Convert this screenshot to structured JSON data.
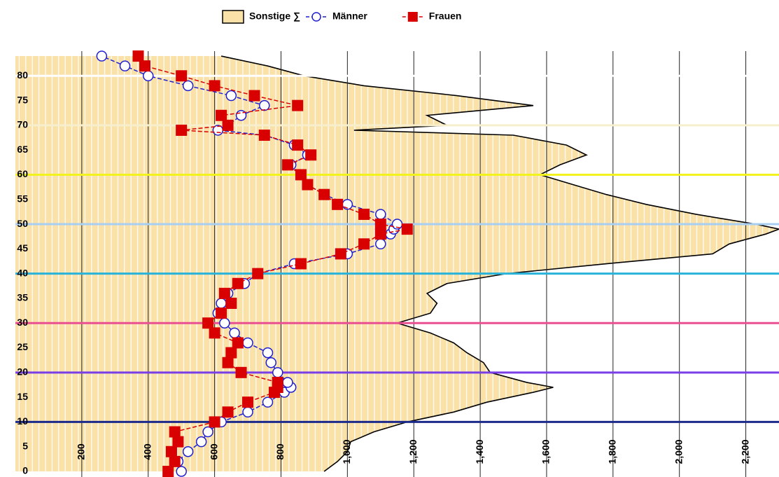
{
  "chart_data": {
    "type": "line",
    "orientation": "horizontal",
    "ages": [
      0,
      2,
      4,
      6,
      8,
      10,
      12,
      14,
      16,
      17,
      18,
      20,
      22,
      24,
      26,
      28,
      30,
      32,
      34,
      36,
      38,
      40,
      42,
      44,
      46,
      48,
      49,
      50,
      52,
      54,
      56,
      58,
      60,
      62,
      64,
      66,
      68,
      69,
      70,
      72,
      74,
      76,
      78,
      80,
      82,
      84
    ],
    "series": [
      {
        "name": "Sonstige ∑",
        "kind": "area",
        "color": "#f9e1a8",
        "values": [
          930,
          970,
          1000,
          1010,
          1080,
          1180,
          1320,
          1420,
          1560,
          1620,
          1540,
          1430,
          1410,
          1360,
          1320,
          1250,
          1150,
          1250,
          1270,
          1240,
          1300,
          1480,
          1780,
          2100,
          2150,
          2260,
          2300,
          2230,
          2050,
          1900,
          1780,
          1680,
          1580,
          1640,
          1720,
          1660,
          1500,
          1020,
          1300,
          1240,
          1560,
          1330,
          1050,
          870,
          760,
          620
        ]
      },
      {
        "name": "Männer",
        "kind": "circle",
        "color": "#1f1fd0",
        "values": [
          500,
          490,
          520,
          560,
          580,
          620,
          700,
          760,
          810,
          830,
          820,
          790,
          770,
          760,
          700,
          660,
          630,
          610,
          620,
          640,
          690,
          730,
          840,
          1000,
          1100,
          1130,
          1140,
          1150,
          1100,
          1000,
          930,
          880,
          860,
          830,
          880,
          840,
          750,
          610,
          640,
          680,
          750,
          650,
          520,
          400,
          330,
          260
        ]
      },
      {
        "name": "Frauen",
        "kind": "square",
        "color": "#d80000",
        "values": [
          460,
          480,
          470,
          490,
          480,
          600,
          640,
          700,
          780,
          790,
          790,
          680,
          640,
          650,
          670,
          600,
          580,
          620,
          650,
          630,
          670,
          730,
          860,
          980,
          1050,
          1100,
          1180,
          1100,
          1050,
          970,
          930,
          880,
          860,
          820,
          890,
          850,
          750,
          500,
          640,
          620,
          850,
          720,
          600,
          500,
          390,
          370
        ]
      }
    ],
    "reference_lines": [
      {
        "value": 10,
        "color": "#1c2a8c"
      },
      {
        "value": 20,
        "color": "#7a3ee6"
      },
      {
        "value": 30,
        "color": "#ea4f92"
      },
      {
        "value": 40,
        "color": "#27b3da"
      },
      {
        "value": 50,
        "color": "#a8cff2"
      },
      {
        "value": 60,
        "color": "#f2f21c"
      },
      {
        "value": 70,
        "color": "#f7efcc"
      },
      {
        "value": 80,
        "color": "#ffffff"
      }
    ],
    "xlim": [
      0,
      2300
    ],
    "xticks": [
      200,
      400,
      600,
      800,
      {
        "value": 1000,
        "label": "1,000"
      },
      {
        "value": 1200,
        "label": "1,200"
      },
      {
        "value": 1400,
        "label": "1,400"
      },
      {
        "value": 1600,
        "label": "1,600"
      },
      {
        "value": 1800,
        "label": "1,800"
      },
      {
        "value": 2000,
        "label": "2,000"
      },
      {
        "value": 2200,
        "label": "2,200"
      }
    ],
    "ylim": [
      0,
      85
    ],
    "yticks": [
      0,
      5,
      10,
      15,
      20,
      25,
      30,
      35,
      40,
      45,
      50,
      55,
      60,
      65,
      70,
      75,
      80
    ],
    "grid": true,
    "legend": "top"
  }
}
